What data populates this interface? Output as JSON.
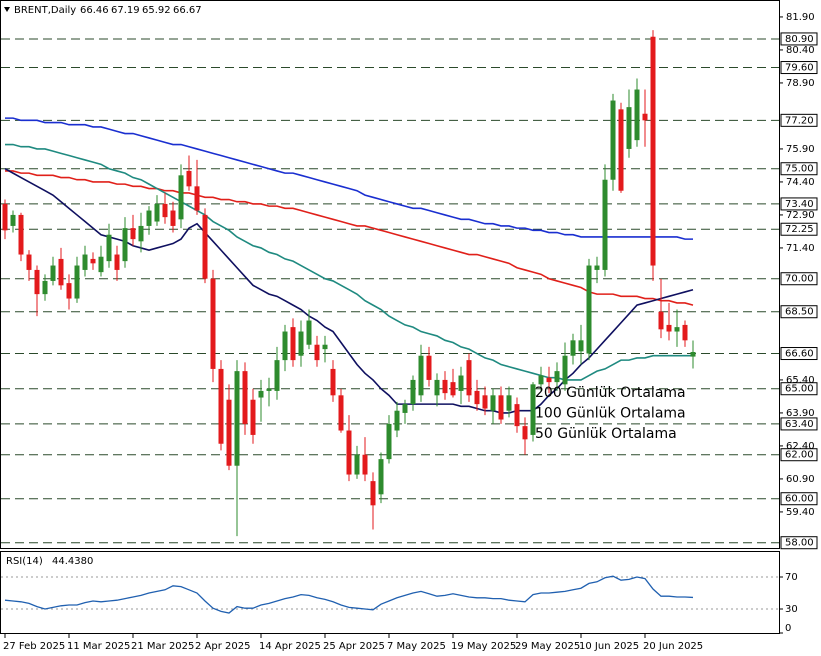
{
  "chart_data": [
    {
      "type": "candlestick",
      "symbol": "BRENT,Daily",
      "x": [
        "27 Feb 2025",
        null,
        null,
        null,
        null,
        null,
        null,
        null,
        "11 Mar 2025",
        null,
        null,
        null,
        null,
        null,
        null,
        null,
        "21 Mar 2025",
        null,
        null,
        null,
        null,
        null,
        null,
        null,
        "2 Apr 2025",
        null,
        null,
        null,
        null,
        null,
        null,
        null,
        "14 Apr 2025",
        null,
        null,
        null,
        null,
        null,
        null,
        null,
        "25 Apr 2025",
        null,
        null,
        null,
        null,
        null,
        null,
        null,
        "7 May 2025",
        null,
        null,
        null,
        null,
        null,
        null,
        null,
        "19 May 2025",
        null,
        null,
        null,
        null,
        null,
        null,
        null,
        "29 May 2025",
        null,
        null,
        null,
        null,
        null,
        null,
        null,
        "10 Jun 2025",
        null,
        null,
        null,
        null,
        null,
        null,
        null,
        "20 Jun 2025",
        null,
        null,
        null,
        null,
        null,
        null
      ],
      "open": [
        73.4,
        72.4,
        72.9,
        71.1,
        70.4,
        69.3,
        69.9,
        70.9,
        69.8,
        69.1,
        70.4,
        70.9,
        70.3,
        70.8,
        71.1,
        70.8,
        72.3,
        71.7,
        72.4,
        72.6,
        73.4,
        73.1,
        72.7,
        74.9,
        74.2,
        72.9,
        70.0,
        65.9,
        64.5,
        61.5,
        65.8,
        64.5,
        64.6,
        64.9,
        64.9,
        66.3,
        67.8,
        66.5,
        67.0,
        67.0,
        66.8,
        65.9,
        64.7,
        63.1,
        61.1,
        62.0,
        60.8,
        60.2,
        61.8,
        63.1,
        63.9,
        64.3,
        64.7,
        66.5,
        64.7,
        65.4,
        65.3,
        64.9,
        66.3,
        64.9,
        64.7,
        64.0,
        64.7,
        64.0,
        64.3,
        63.3,
        62.9,
        65.2,
        65.5,
        65.3,
        65.2,
        66.5,
        66.7,
        66.6,
        70.4,
        70.4,
        74.5,
        77.7,
        75.9,
        76.3,
        77.5,
        81.0,
        68.5,
        67.9,
        67.6,
        67.9,
        66.46
      ],
      "high": [
        73.6,
        73.1,
        73.0,
        71.3,
        70.6,
        70.2,
        71.0,
        71.4,
        70.2,
        71.0,
        71.5,
        71.2,
        71.5,
        72.5,
        71.5,
        72.8,
        72.9,
        73.0,
        73.3,
        73.8,
        73.9,
        73.5,
        75.2,
        75.6,
        75.4,
        73.2,
        70.4,
        66.3,
        65.2,
        66.3,
        66.2,
        65.0,
        65.4,
        65.5,
        66.9,
        67.9,
        68.2,
        68.1,
        68.6,
        67.4,
        67.4,
        66.3,
        65.0,
        63.8,
        62.4,
        62.8,
        61.2,
        62.1,
        63.8,
        64.4,
        64.5,
        65.6,
        67.0,
        66.9,
        65.7,
        65.8,
        65.9,
        66.0,
        66.6,
        65.4,
        65.1,
        65.0,
        65.1,
        65.1,
        64.6,
        63.7,
        65.3,
        66.0,
        66.0,
        66.2,
        67.1,
        67.5,
        67.9,
        70.9,
        71.0,
        75.2,
        78.4,
        78.0,
        78.6,
        79.1,
        78.6,
        81.3,
        70.0,
        68.9,
        68.6,
        68.1,
        67.19
      ],
      "low": [
        71.8,
        72.1,
        70.8,
        69.9,
        68.3,
        69.0,
        69.7,
        69.5,
        68.6,
        68.9,
        70.1,
        70.4,
        70.1,
        70.5,
        69.9,
        70.5,
        71.5,
        71.2,
        72.0,
        72.4,
        72.5,
        72.1,
        72.3,
        74.0,
        72.9,
        69.8,
        65.3,
        62.2,
        61.3,
        58.3,
        62.9,
        62.5,
        63.5,
        64.2,
        64.5,
        65.8,
        66.0,
        66.0,
        66.8,
        66.0,
        66.2,
        64.4,
        63.0,
        60.8,
        60.9,
        60.8,
        58.6,
        59.8,
        61.6,
        62.8,
        63.4,
        64.0,
        64.4,
        65.1,
        64.2,
        64.5,
        64.6,
        64.3,
        64.4,
        64.0,
        63.8,
        63.4,
        63.4,
        63.7,
        63.0,
        62.0,
        62.6,
        64.9,
        64.8,
        64.9,
        64.9,
        66.1,
        66.1,
        66.3,
        69.8,
        70.1,
        74.0,
        73.9,
        75.5,
        76.0,
        76.0,
        69.9,
        67.3,
        67.2,
        66.9,
        66.9,
        65.92
      ],
      "close": [
        72.2,
        72.9,
        71.1,
        70.4,
        69.3,
        69.9,
        70.6,
        69.7,
        69.1,
        70.6,
        71.1,
        70.7,
        71.0,
        72.0,
        70.4,
        72.3,
        71.8,
        72.4,
        73.1,
        73.4,
        72.8,
        72.4,
        74.7,
        74.2,
        73.1,
        70.0,
        65.9,
        62.5,
        61.5,
        65.8,
        63.4,
        62.9,
        64.9,
        65.0,
        66.3,
        67.6,
        66.3,
        67.6,
        68.1,
        66.3,
        67.0,
        64.7,
        63.1,
        61.1,
        62.0,
        61.1,
        59.7,
        61.8,
        63.4,
        64.0,
        64.3,
        65.4,
        66.5,
        65.4,
        65.4,
        64.8,
        64.7,
        65.6,
        64.7,
        64.3,
        64.1,
        64.7,
        63.6,
        64.7,
        63.3,
        62.7,
        65.2,
        65.6,
        65.3,
        65.8,
        66.5,
        67.2,
        67.2,
        70.6,
        70.6,
        74.5,
        78.1,
        74.0,
        77.8,
        78.6,
        77.2,
        70.6,
        67.7,
        67.6,
        67.8,
        67.2,
        66.67
      ],
      "up_color": "#2e8b2e",
      "down_color": "#e31a1c",
      "ylim": [
        57.76,
        82.67
      ],
      "yticks": [
        {
          "value": 81.9,
          "label": "81.90"
        },
        {
          "value": 80.4,
          "label": "80.40"
        },
        {
          "value": 78.9,
          "label": "78.90"
        },
        {
          "value": 75.9,
          "label": "75.90"
        },
        {
          "value": 74.4,
          "label": "74.40"
        },
        {
          "value": 72.9,
          "label": "72.90"
        },
        {
          "value": 71.4,
          "label": "71.40"
        },
        {
          "value": 65.4,
          "label": "65.40"
        },
        {
          "value": 63.9,
          "label": "63.90"
        },
        {
          "value": 62.4,
          "label": "62.40"
        },
        {
          "value": 60.9,
          "label": "60.90"
        },
        {
          "value": 59.4,
          "label": "59.40"
        }
      ],
      "levels": [
        {
          "value": 80.9,
          "label": "80.90"
        },
        {
          "value": 79.6,
          "label": "79.60"
        },
        {
          "value": 77.2,
          "label": "77.20"
        },
        {
          "value": 75,
          "label": "75.00"
        },
        {
          "value": 73.4,
          "label": "73.40"
        },
        {
          "value": 72.25,
          "label": "72.25"
        },
        {
          "value": 70,
          "label": "70.00"
        },
        {
          "value": 68.5,
          "label": "68.50"
        },
        {
          "value": 66.6,
          "label": "66.60"
        },
        {
          "value": 65,
          "label": "65.00"
        },
        {
          "value": 63.4,
          "label": "63.40"
        },
        {
          "value": 62,
          "label": "62.00"
        },
        {
          "value": 60,
          "label": "60.00"
        },
        {
          "value": 58,
          "label": "58.00"
        }
      ],
      "series": [
        {
          "name": "200 Günlük Ortalama",
          "color": "#1a2fd0",
          "values": [
            77.3,
            77.3,
            77.2,
            77.2,
            77.2,
            77.1,
            77.1,
            77.1,
            77.0,
            77.0,
            77.0,
            76.9,
            76.9,
            76.8,
            76.7,
            76.6,
            76.6,
            76.5,
            76.4,
            76.3,
            76.2,
            76.1,
            76.1,
            76.0,
            75.9,
            75.8,
            75.7,
            75.6,
            75.5,
            75.4,
            75.3,
            75.2,
            75.1,
            75.0,
            74.9,
            74.8,
            74.8,
            74.7,
            74.6,
            74.5,
            74.4,
            74.3,
            74.2,
            74.1,
            74.0,
            73.8,
            73.7,
            73.6,
            73.5,
            73.4,
            73.3,
            73.2,
            73.2,
            73.1,
            73.0,
            72.9,
            72.8,
            72.7,
            72.7,
            72.6,
            72.5,
            72.5,
            72.4,
            72.4,
            72.3,
            72.3,
            72.2,
            72.2,
            72.1,
            72.1,
            72.0,
            72.0,
            71.9,
            71.9,
            71.9,
            71.9,
            71.9,
            71.9,
            71.9,
            71.9,
            71.9,
            71.9,
            71.9,
            71.9,
            71.9,
            71.8,
            71.8
          ]
        },
        {
          "name": "100 Günlük Ortalama",
          "color": "#e0201a",
          "values": [
            74.9,
            74.9,
            74.8,
            74.8,
            74.7,
            74.7,
            74.7,
            74.6,
            74.6,
            74.5,
            74.5,
            74.4,
            74.4,
            74.4,
            74.3,
            74.3,
            74.2,
            74.2,
            74.1,
            74.1,
            74.0,
            74.0,
            73.9,
            73.9,
            73.8,
            73.7,
            73.7,
            73.6,
            73.6,
            73.5,
            73.5,
            73.4,
            73.4,
            73.3,
            73.3,
            73.2,
            73.2,
            73.1,
            73.0,
            72.9,
            72.8,
            72.7,
            72.6,
            72.5,
            72.4,
            72.4,
            72.3,
            72.2,
            72.1,
            72.0,
            71.9,
            71.8,
            71.7,
            71.6,
            71.5,
            71.4,
            71.3,
            71.2,
            71.1,
            71.1,
            71.0,
            70.9,
            70.8,
            70.7,
            70.5,
            70.4,
            70.3,
            70.2,
            70.0,
            69.9,
            69.8,
            69.7,
            69.6,
            69.4,
            69.3,
            69.3,
            69.3,
            69.2,
            69.2,
            69.2,
            69.1,
            69.1,
            69.0,
            69.0,
            68.9,
            68.9,
            68.8
          ]
        },
        {
          "name": "50 Günlük Ortalama",
          "color": "#1f8a80",
          "values": [
            76.1,
            76.1,
            76.0,
            76.0,
            75.9,
            75.9,
            75.8,
            75.7,
            75.6,
            75.5,
            75.4,
            75.3,
            75.2,
            75.0,
            74.9,
            74.8,
            74.6,
            74.5,
            74.3,
            74.1,
            73.9,
            73.7,
            73.5,
            73.3,
            73.1,
            72.9,
            72.6,
            72.4,
            72.2,
            71.9,
            71.7,
            71.5,
            71.4,
            71.2,
            71.1,
            70.9,
            70.8,
            70.6,
            70.4,
            70.2,
            70.0,
            69.9,
            69.7,
            69.5,
            69.3,
            69.0,
            68.8,
            68.6,
            68.3,
            68.1,
            67.9,
            67.8,
            67.6,
            67.5,
            67.4,
            67.2,
            67.1,
            66.9,
            66.8,
            66.6,
            66.4,
            66.3,
            66.1,
            66.0,
            65.9,
            65.8,
            65.7,
            65.6,
            65.5,
            65.5,
            65.4,
            65.4,
            65.4,
            65.6,
            65.8,
            65.9,
            66.1,
            66.3,
            66.3,
            66.4,
            66.4,
            66.5,
            66.5,
            66.5,
            66.5,
            66.5,
            66.5
          ]
        },
        {
          "color": "#0f1060",
          "values": [
            75.0,
            74.8,
            74.6,
            74.4,
            74.2,
            74.0,
            73.8,
            73.5,
            73.2,
            72.9,
            72.6,
            72.3,
            72.0,
            71.9,
            71.8,
            71.7,
            71.5,
            71.4,
            71.3,
            71.4,
            71.5,
            71.6,
            71.8,
            72.3,
            72.5,
            72.1,
            71.7,
            71.3,
            70.9,
            70.5,
            70.1,
            69.7,
            69.5,
            69.3,
            69.2,
            69.0,
            68.8,
            68.6,
            68.3,
            68.1,
            67.8,
            67.6,
            67.1,
            66.6,
            66.1,
            65.7,
            65.4,
            65.0,
            64.7,
            64.3,
            64.3,
            64.3,
            64.3,
            64.3,
            64.3,
            64.3,
            64.3,
            64.2,
            64.2,
            64.1,
            64.0,
            64.0,
            63.9,
            63.9,
            64.0,
            64.0,
            64.0,
            64.3,
            64.7,
            65.0,
            65.4,
            65.7,
            66.1,
            66.4,
            66.8,
            67.2,
            67.6,
            68.0,
            68.4,
            68.8,
            68.9,
            69.0,
            69.1,
            69.2,
            69.3,
            69.4,
            69.5
          ]
        }
      ]
    },
    {
      "type": "line",
      "name": "RSI(14)",
      "current": {
        "value": 44.438,
        "label": "44.4380"
      },
      "color": "#2060b0",
      "values": [
        41,
        40,
        39,
        37,
        33,
        30,
        32,
        34,
        35,
        35,
        38,
        40,
        39,
        40,
        41,
        43,
        45,
        47,
        50,
        52,
        54,
        59,
        58,
        54,
        50,
        40,
        31,
        27,
        25,
        33,
        31,
        31,
        35,
        37,
        40,
        43,
        45,
        48,
        47,
        44,
        42,
        39,
        35,
        32,
        31,
        30,
        29,
        36,
        40,
        44,
        47,
        50,
        52,
        49,
        46,
        47,
        49,
        47,
        45,
        44,
        44,
        43,
        43,
        41,
        40,
        39,
        48,
        50,
        50,
        51,
        52,
        54,
        56,
        62,
        64,
        69,
        71,
        66,
        67,
        70,
        68,
        55,
        46,
        46,
        45,
        45,
        44.438
      ],
      "ylim": [
        0,
        100
      ],
      "yticks": [
        70,
        30,
        0
      ],
      "levels": [
        70,
        30
      ]
    }
  ]
}
